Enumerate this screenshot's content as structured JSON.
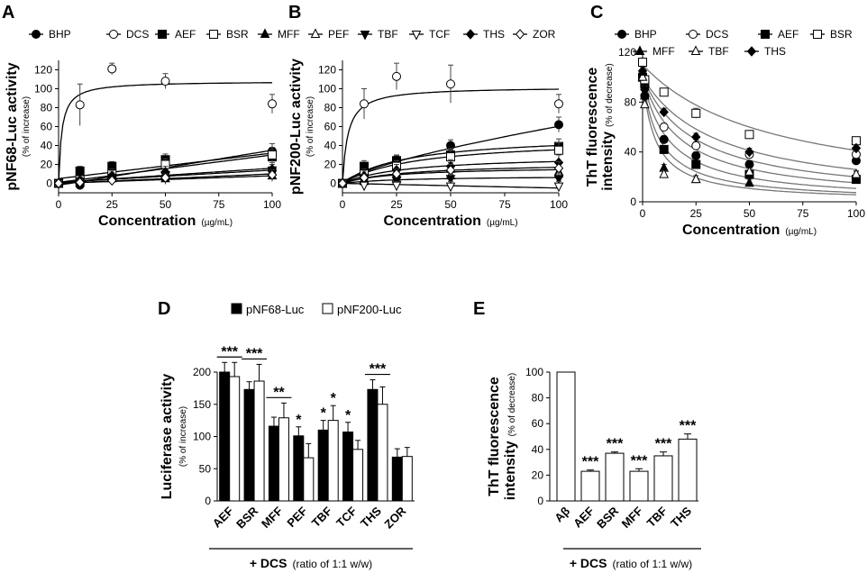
{
  "chart_data": [
    {
      "id": "A",
      "type": "line",
      "panel_label": "A",
      "ylabel": "pNF68-Luc activity",
      "ylabel_sub": "(% of increase)",
      "xlabel": "Concentration",
      "xlabel_unit": "(µg/mL)",
      "xlim": [
        0,
        100
      ],
      "ylim": [
        -10,
        130
      ],
      "xticks": [
        0,
        25,
        50,
        75,
        100
      ],
      "yticks": [
        0,
        20,
        40,
        60,
        80,
        100,
        120
      ],
      "x": [
        0,
        10,
        25,
        50,
        100
      ],
      "legend": [
        "BHP",
        "DCS",
        "AEF",
        "BSR",
        "MFF",
        "PEF",
        "TBF",
        "TCF",
        "THS",
        "ZOR"
      ],
      "series": [
        {
          "name": "BHP",
          "marker": "circle-filled",
          "values": [
            0,
            -2,
            5,
            22,
            34
          ],
          "err": [
            3,
            4,
            5,
            6,
            8
          ]
        },
        {
          "name": "DCS",
          "marker": "circle-open",
          "values": [
            0,
            83,
            121,
            108,
            84
          ],
          "err": [
            2,
            22,
            6,
            8,
            10
          ]
        },
        {
          "name": "AEF",
          "marker": "square-filled",
          "values": [
            0,
            13,
            18,
            25,
            28
          ],
          "err": [
            3,
            5,
            5,
            6,
            7
          ]
        },
        {
          "name": "BSR",
          "marker": "square-open",
          "values": [
            0,
            4,
            10,
            20,
            30
          ],
          "err": [
            3,
            4,
            5,
            6,
            8
          ]
        },
        {
          "name": "MFF",
          "marker": "triangle-filled",
          "values": [
            0,
            1,
            5,
            5,
            8
          ],
          "err": [
            3,
            3,
            4,
            6,
            6
          ]
        },
        {
          "name": "PEF",
          "marker": "triangle-open",
          "values": [
            0,
            3,
            7,
            10,
            12
          ],
          "err": [
            2,
            3,
            4,
            5,
            5
          ]
        },
        {
          "name": "TBF",
          "marker": "triangle-down-filled",
          "values": [
            0,
            2,
            4,
            8,
            10
          ],
          "err": [
            2,
            3,
            4,
            5,
            6
          ]
        },
        {
          "name": "TCF",
          "marker": "triangle-down-open",
          "values": [
            0,
            2,
            6,
            9,
            14
          ],
          "err": [
            2,
            3,
            4,
            5,
            6
          ]
        },
        {
          "name": "THS",
          "marker": "diamond-filled",
          "values": [
            0,
            3,
            8,
            12,
            15
          ],
          "err": [
            3,
            4,
            5,
            6,
            7
          ]
        },
        {
          "name": "ZOR",
          "marker": "diamond-open",
          "values": [
            0,
            1,
            3,
            6,
            9
          ],
          "err": [
            2,
            3,
            3,
            4,
            5
          ]
        }
      ],
      "fits": [
        {
          "name": "DCS",
          "kind": "hyper",
          "vmax": 108,
          "k": 1.5
        },
        {
          "name": "BHP",
          "kind": "linear",
          "slope": 0.37,
          "icpt": -2
        },
        {
          "name": "AEF",
          "kind": "linear",
          "slope": 0.27,
          "icpt": 5
        },
        {
          "name": "BSR",
          "kind": "linear",
          "slope": 0.29,
          "icpt": 1
        },
        {
          "name": "THS",
          "kind": "linear",
          "slope": 0.15,
          "icpt": 1
        },
        {
          "name": "TCF",
          "kind": "linear",
          "slope": 0.13,
          "icpt": 1
        },
        {
          "name": "TBF",
          "kind": "linear",
          "slope": 0.1,
          "icpt": 0
        },
        {
          "name": "MFF",
          "kind": "linear",
          "slope": 0.08,
          "icpt": 0
        }
      ]
    },
    {
      "id": "B",
      "type": "line",
      "panel_label": "B",
      "ylabel": "pNF200-Luc activity",
      "ylabel_sub": "(% of increase)",
      "xlabel": "Concentration",
      "xlabel_unit": "(µg/mL)",
      "xlim": [
        0,
        100
      ],
      "ylim": [
        -10,
        130
      ],
      "xticks": [
        0,
        25,
        50,
        75,
        100
      ],
      "yticks": [
        0,
        20,
        40,
        60,
        80,
        100,
        120
      ],
      "x": [
        0,
        10,
        25,
        50,
        100
      ],
      "series": [
        {
          "name": "BHP",
          "marker": "circle-filled",
          "values": [
            0,
            12,
            22,
            40,
            62
          ],
          "err": [
            3,
            6,
            7,
            6,
            8
          ]
        },
        {
          "name": "DCS",
          "marker": "circle-open",
          "values": [
            0,
            84,
            113,
            105,
            84
          ],
          "err": [
            3,
            16,
            14,
            20,
            10
          ]
        },
        {
          "name": "AEF",
          "marker": "square-filled",
          "values": [
            0,
            18,
            24,
            30,
            39
          ],
          "err": [
            3,
            6,
            6,
            7,
            8
          ]
        },
        {
          "name": "BSR",
          "marker": "square-open",
          "values": [
            0,
            10,
            18,
            28,
            35
          ],
          "err": [
            3,
            5,
            6,
            7,
            8
          ]
        },
        {
          "name": "MFF",
          "marker": "triangle-filled",
          "values": [
            0,
            4,
            10,
            15,
            12
          ],
          "err": [
            3,
            4,
            5,
            7,
            6
          ]
        },
        {
          "name": "PEF",
          "marker": "triangle-open",
          "values": [
            0,
            2,
            5,
            8,
            10
          ],
          "err": [
            3,
            4,
            5,
            6,
            6
          ]
        },
        {
          "name": "TBF",
          "marker": "triangle-down-filled",
          "values": [
            0,
            2,
            3,
            5,
            5
          ],
          "err": [
            2,
            3,
            4,
            5,
            5
          ]
        },
        {
          "name": "TCF",
          "marker": "triangle-down-open",
          "values": [
            0,
            -2,
            -2,
            -3,
            -3
          ],
          "err": [
            2,
            3,
            4,
            5,
            5
          ]
        },
        {
          "name": "THS",
          "marker": "diamond-filled",
          "values": [
            0,
            8,
            14,
            18,
            22
          ],
          "err": [
            3,
            5,
            6,
            7,
            8
          ]
        },
        {
          "name": "ZOR",
          "marker": "diamond-open",
          "values": [
            0,
            6,
            10,
            14,
            16
          ],
          "err": [
            3,
            4,
            5,
            6,
            7
          ]
        }
      ],
      "fits": [
        {
          "name": "DCS",
          "kind": "hyper",
          "vmax": 102,
          "k": 2.5
        },
        {
          "name": "BHP",
          "kind": "power",
          "a": 2.4,
          "p": 0.7
        },
        {
          "name": "AEF",
          "kind": "hyper",
          "vmax": 52,
          "k": 30
        },
        {
          "name": "BSR",
          "kind": "hyper",
          "vmax": 48,
          "k": 35
        },
        {
          "name": "THS",
          "kind": "hyper",
          "vmax": 30,
          "k": 30
        },
        {
          "name": "ZOR",
          "kind": "hyper",
          "vmax": 22,
          "k": 30
        },
        {
          "name": "MFF",
          "kind": "hyper",
          "vmax": 18,
          "k": 25
        },
        {
          "name": "TBF",
          "kind": "hyper",
          "vmax": 8,
          "k": 30
        },
        {
          "name": "TCF",
          "kind": "linear",
          "slope": -0.05,
          "icpt": 0
        }
      ]
    },
    {
      "id": "C",
      "type": "line",
      "panel_label": "C",
      "ylabel": "ThT fluorescence",
      "ylabel2": "intensity",
      "ylabel_sub": "(% of decrease)",
      "xlabel": "Concentration",
      "xlabel_unit": "(µg/mL)",
      "xlim": [
        0,
        100
      ],
      "ylim": [
        0,
        120
      ],
      "xticks": [
        0,
        25,
        50,
        75,
        100
      ],
      "yticks": [
        0,
        40,
        80,
        120
      ],
      "x": [
        0,
        1,
        10,
        25,
        50,
        100
      ],
      "legend": [
        "BHP",
        "DCS",
        "AEF",
        "BSR",
        "MFF",
        "TBF",
        "THS"
      ],
      "series": [
        {
          "name": "BHP",
          "marker": "circle-filled",
          "values": [
            100,
            85,
            50,
            37,
            30,
            33
          ],
          "err": [
            3,
            3,
            3,
            3,
            3,
            3
          ]
        },
        {
          "name": "DCS",
          "marker": "circle-open",
          "values": [
            100,
            92,
            60,
            45,
            38,
            38
          ],
          "err": [
            3,
            3,
            3,
            3,
            3,
            3
          ]
        },
        {
          "name": "AEF",
          "marker": "square-filled",
          "values": [
            100,
            95,
            42,
            30,
            22,
            18
          ],
          "err": [
            3,
            3,
            3,
            3,
            3,
            3
          ]
        },
        {
          "name": "BSR",
          "marker": "square-open",
          "values": [
            112,
            98,
            88,
            71,
            54,
            49
          ],
          "err": [
            3,
            3,
            3,
            4,
            3,
            3
          ]
        },
        {
          "name": "MFF",
          "marker": "triangle-filled",
          "values": [
            100,
            85,
            27,
            18,
            15,
            21
          ],
          "err": [
            3,
            3,
            3,
            3,
            3,
            3
          ]
        },
        {
          "name": "TBF",
          "marker": "triangle-open",
          "values": [
            100,
            78,
            22,
            18,
            24,
            22
          ],
          "err": [
            3,
            3,
            3,
            3,
            3,
            3
          ]
        },
        {
          "name": "THS",
          "marker": "diamond-filled",
          "values": [
            105,
            90,
            72,
            52,
            40,
            43
          ],
          "err": [
            3,
            3,
            3,
            3,
            3,
            3
          ]
        }
      ],
      "fits": [
        {
          "name": "BSR",
          "kind": "decay",
          "a": 110,
          "k": 60
        },
        {
          "name": "THS",
          "kind": "decay",
          "a": 100,
          "k": 35
        },
        {
          "name": "DCS",
          "kind": "decay",
          "a": 100,
          "k": 25
        },
        {
          "name": "BHP",
          "kind": "decay",
          "a": 100,
          "k": 18
        },
        {
          "name": "AEF",
          "kind": "decay",
          "a": 100,
          "k": 12
        },
        {
          "name": "MFF",
          "kind": "decay",
          "a": 100,
          "k": 8
        },
        {
          "name": "TBF",
          "kind": "decay",
          "a": 100,
          "k": 6
        }
      ]
    },
    {
      "id": "D",
      "type": "bar",
      "panel_label": "D",
      "ylabel": "Luciferase activity",
      "ylabel_sub": "(% of increase)",
      "ylim": [
        0,
        200
      ],
      "yticks": [
        0,
        50,
        100,
        150,
        200
      ],
      "categories": [
        "AEF",
        "BSR",
        "MFF",
        "PEF",
        "TBF",
        "TCF",
        "THS",
        "ZOR"
      ],
      "series": [
        {
          "name": "pNF68-Luc",
          "fill": "#000000",
          "values": [
            200,
            173,
            116,
            101,
            110,
            107,
            173,
            68
          ],
          "err": [
            15,
            12,
            14,
            14,
            15,
            15,
            15,
            13
          ]
        },
        {
          "name": "pNF200-Luc",
          "fill": "#ffffff",
          "values": [
            193,
            186,
            129,
            67,
            125,
            80,
            150,
            69
          ],
          "err": [
            22,
            26,
            23,
            22,
            23,
            14,
            27,
            14
          ]
        }
      ],
      "brackets": [
        {
          "from": 0,
          "to": 0,
          "label": "***"
        },
        {
          "from": 1,
          "to": 1,
          "label": "***"
        },
        {
          "from": 2,
          "to": 2,
          "label": "**"
        },
        {
          "from": 6,
          "to": 6,
          "label": "***"
        }
      ],
      "stars": [
        {
          "cat": 3,
          "series": 0,
          "label": "*"
        },
        {
          "cat": 4,
          "series": 0,
          "label": "*"
        },
        {
          "cat": 4,
          "series": 1,
          "label": "*"
        },
        {
          "cat": 5,
          "series": 0,
          "label": "*"
        }
      ],
      "condition": "+ DCS",
      "condition_sub": "(ratio of 1:1 w/w)"
    },
    {
      "id": "E",
      "type": "bar",
      "panel_label": "E",
      "ylabel": "ThT fluorescence",
      "ylabel2": "intensity",
      "ylabel_sub": "(% of decrease)",
      "ylim": [
        0,
        100
      ],
      "yticks": [
        0,
        20,
        40,
        60,
        80,
        100
      ],
      "categories": [
        "Aβ",
        "AEF",
        "BSR",
        "MFF",
        "TBF",
        "THS"
      ],
      "values": [
        100,
        23,
        37,
        23,
        35,
        48
      ],
      "err": [
        0,
        1,
        1,
        2,
        3,
        4
      ],
      "stars": [
        "",
        "***",
        "***",
        "***",
        "***",
        "***"
      ],
      "condition": "+ DCS",
      "condition_sub": "(ratio of 1:1 w/w)"
    }
  ]
}
